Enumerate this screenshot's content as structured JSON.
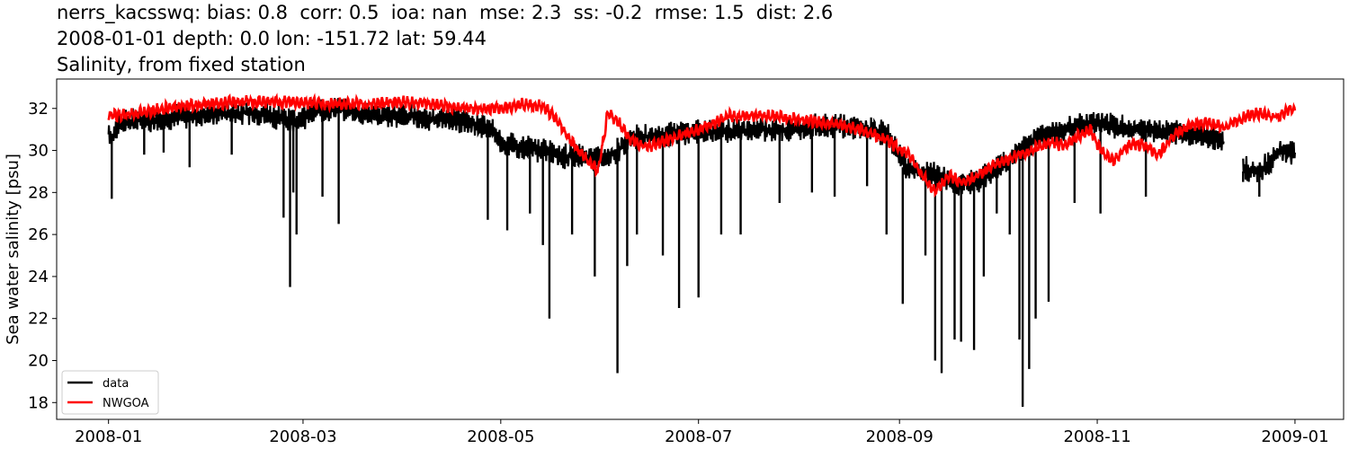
{
  "title_lines": [
    "nerrs_kacsswq: bias: 0.8  corr: 0.5  ioa: nan  mse: 2.3  ss: -0.2  rmse: 1.5  dist: 2.6",
    "2008-01-01 depth: 0.0 lon: -151.72 lat: 59.44",
    "Salinity, from fixed station"
  ],
  "chart_data": {
    "type": "line",
    "ylabel": "Sea water salinity [psu]",
    "xlim": [
      "2007-12-16",
      "2009-01-16"
    ],
    "ylim": [
      17.2,
      33.4
    ],
    "xticks": [
      "2008-01",
      "2008-03",
      "2008-05",
      "2008-07",
      "2008-09",
      "2008-11",
      "2009-01"
    ],
    "yticks": [
      18,
      20,
      22,
      24,
      26,
      28,
      30,
      32
    ],
    "grid": false,
    "legend_position": "lower-left",
    "series": [
      {
        "name": "data",
        "color": "#000000",
        "x": [
          "2008-01-01",
          "2008-01-02",
          "2008-01-04",
          "2008-01-08",
          "2008-01-15",
          "2008-01-22",
          "2008-01-30",
          "2008-02-07",
          "2008-02-15",
          "2008-02-22",
          "2008-02-26",
          "2008-02-29",
          "2008-03-05",
          "2008-03-12",
          "2008-03-18",
          "2008-03-25",
          "2008-04-01",
          "2008-04-08",
          "2008-04-15",
          "2008-04-22",
          "2008-04-28",
          "2008-05-02",
          "2008-05-09",
          "2008-05-16",
          "2008-05-20",
          "2008-05-25",
          "2008-05-30",
          "2008-06-05",
          "2008-06-10",
          "2008-06-17",
          "2008-06-25",
          "2008-07-02",
          "2008-07-10",
          "2008-07-18",
          "2008-07-25",
          "2008-08-01",
          "2008-08-07",
          "2008-08-15",
          "2008-08-22",
          "2008-08-28",
          "2008-09-03",
          "2008-09-08",
          "2008-09-13",
          "2008-09-18",
          "2008-09-24",
          "2008-09-30",
          "2008-10-06",
          "2008-10-10",
          "2008-10-15",
          "2008-10-22",
          "2008-10-29",
          "2008-11-05",
          "2008-11-12",
          "2008-11-20",
          "2008-11-27",
          "2008-12-04",
          "2008-12-09",
          "2008-12-18",
          "2008-12-22",
          "2008-12-27",
          "2009-01-01"
        ],
        "y": [
          30.9,
          30.5,
          31.3,
          31.4,
          31.5,
          31.6,
          31.7,
          31.8,
          31.8,
          31.6,
          31.4,
          31.5,
          31.9,
          32.0,
          31.8,
          31.6,
          31.7,
          31.5,
          31.5,
          31.3,
          31.0,
          30.3,
          30.1,
          30.0,
          29.7,
          29.8,
          29.6,
          29.8,
          30.6,
          30.7,
          30.8,
          30.9,
          30.9,
          31.0,
          31.0,
          31.0,
          31.2,
          31.2,
          31.0,
          30.8,
          29.2,
          28.9,
          28.8,
          28.4,
          28.5,
          29.0,
          29.7,
          30.2,
          30.7,
          31.0,
          31.3,
          31.2,
          31.0,
          30.9,
          30.8,
          30.7,
          30.5,
          29.0,
          29.1,
          29.9,
          29.9
        ],
        "dips": [
          [
            "2008-01-02",
            27.7
          ],
          [
            "2008-01-12",
            29.8
          ],
          [
            "2008-01-18",
            29.9
          ],
          [
            "2008-01-26",
            29.2
          ],
          [
            "2008-02-08",
            29.8
          ],
          [
            "2008-02-24",
            26.8
          ],
          [
            "2008-02-26",
            23.5
          ],
          [
            "2008-02-27",
            28.0
          ],
          [
            "2008-02-28",
            26.0
          ],
          [
            "2008-03-07",
            27.8
          ],
          [
            "2008-03-12",
            26.5
          ],
          [
            "2008-04-27",
            26.7
          ],
          [
            "2008-05-03",
            26.2
          ],
          [
            "2008-05-10",
            27.0
          ],
          [
            "2008-05-14",
            25.5
          ],
          [
            "2008-05-16",
            22.0
          ],
          [
            "2008-05-23",
            26.0
          ],
          [
            "2008-05-30",
            24.0
          ],
          [
            "2008-06-06",
            19.4
          ],
          [
            "2008-06-09",
            24.5
          ],
          [
            "2008-06-12",
            26.0
          ],
          [
            "2008-06-20",
            25.0
          ],
          [
            "2008-06-25",
            22.5
          ],
          [
            "2008-07-01",
            23.0
          ],
          [
            "2008-07-08",
            26.0
          ],
          [
            "2008-07-14",
            26.0
          ],
          [
            "2008-07-26",
            27.5
          ],
          [
            "2008-08-05",
            28.0
          ],
          [
            "2008-08-12",
            27.8
          ],
          [
            "2008-08-22",
            28.3
          ],
          [
            "2008-08-28",
            26.0
          ],
          [
            "2008-09-02",
            22.7
          ],
          [
            "2008-09-09",
            25.0
          ],
          [
            "2008-09-12",
            20.0
          ],
          [
            "2008-09-14",
            19.4
          ],
          [
            "2008-09-18",
            21.0
          ],
          [
            "2008-09-20",
            20.9
          ],
          [
            "2008-09-24",
            20.5
          ],
          [
            "2008-09-27",
            24.0
          ],
          [
            "2008-10-01",
            27.0
          ],
          [
            "2008-10-05",
            26.0
          ],
          [
            "2008-10-08",
            21.0
          ],
          [
            "2008-10-09",
            17.8
          ],
          [
            "2008-10-11",
            19.6
          ],
          [
            "2008-10-13",
            22.0
          ],
          [
            "2008-10-17",
            22.8
          ],
          [
            "2008-10-25",
            27.5
          ],
          [
            "2008-11-02",
            27.0
          ],
          [
            "2008-11-16",
            27.8
          ],
          [
            "2008-12-16",
            28.5
          ],
          [
            "2008-12-21",
            27.8
          ]
        ]
      },
      {
        "name": "NWGOA",
        "color": "#ff0000",
        "x": [
          "2008-01-01",
          "2008-01-08",
          "2008-01-15",
          "2008-01-22",
          "2008-02-01",
          "2008-02-10",
          "2008-02-20",
          "2008-03-01",
          "2008-03-10",
          "2008-03-20",
          "2008-03-31",
          "2008-04-10",
          "2008-04-20",
          "2008-04-30",
          "2008-05-07",
          "2008-05-14",
          "2008-05-18",
          "2008-05-22",
          "2008-05-25",
          "2008-05-28",
          "2008-05-31",
          "2008-06-03",
          "2008-06-07",
          "2008-06-10",
          "2008-06-15",
          "2008-06-20",
          "2008-06-25",
          "2008-07-01",
          "2008-07-10",
          "2008-07-20",
          "2008-07-31",
          "2008-08-10",
          "2008-08-20",
          "2008-08-27",
          "2008-09-01",
          "2008-09-05",
          "2008-09-09",
          "2008-09-12",
          "2008-09-16",
          "2008-09-20",
          "2008-09-24",
          "2008-09-28",
          "2008-10-02",
          "2008-10-06",
          "2008-10-10",
          "2008-10-14",
          "2008-10-18",
          "2008-10-22",
          "2008-10-26",
          "2008-10-30",
          "2008-11-02",
          "2008-11-06",
          "2008-11-10",
          "2008-11-15",
          "2008-11-20",
          "2008-11-25",
          "2008-11-30",
          "2008-12-05",
          "2008-12-10",
          "2008-12-15",
          "2008-12-20",
          "2008-12-25",
          "2008-12-28",
          "2008-12-30",
          "2009-01-01"
        ],
        "y": [
          31.7,
          31.7,
          31.9,
          32.1,
          32.2,
          32.3,
          32.3,
          32.3,
          32.2,
          32.2,
          32.3,
          32.2,
          32.0,
          32.0,
          32.2,
          32.1,
          31.5,
          30.6,
          30.0,
          29.5,
          29.0,
          31.8,
          31.2,
          30.5,
          30.2,
          30.4,
          30.7,
          31.0,
          31.6,
          31.7,
          31.5,
          31.3,
          31.0,
          30.6,
          30.1,
          29.6,
          28.6,
          28.0,
          28.8,
          28.5,
          28.7,
          29.1,
          29.4,
          29.7,
          29.9,
          30.2,
          30.4,
          30.2,
          30.7,
          31.0,
          30.0,
          29.5,
          30.2,
          30.3,
          29.8,
          30.8,
          31.2,
          31.3,
          31.1,
          31.5,
          31.8,
          31.6,
          31.7,
          32.0,
          31.9
        ]
      }
    ]
  }
}
